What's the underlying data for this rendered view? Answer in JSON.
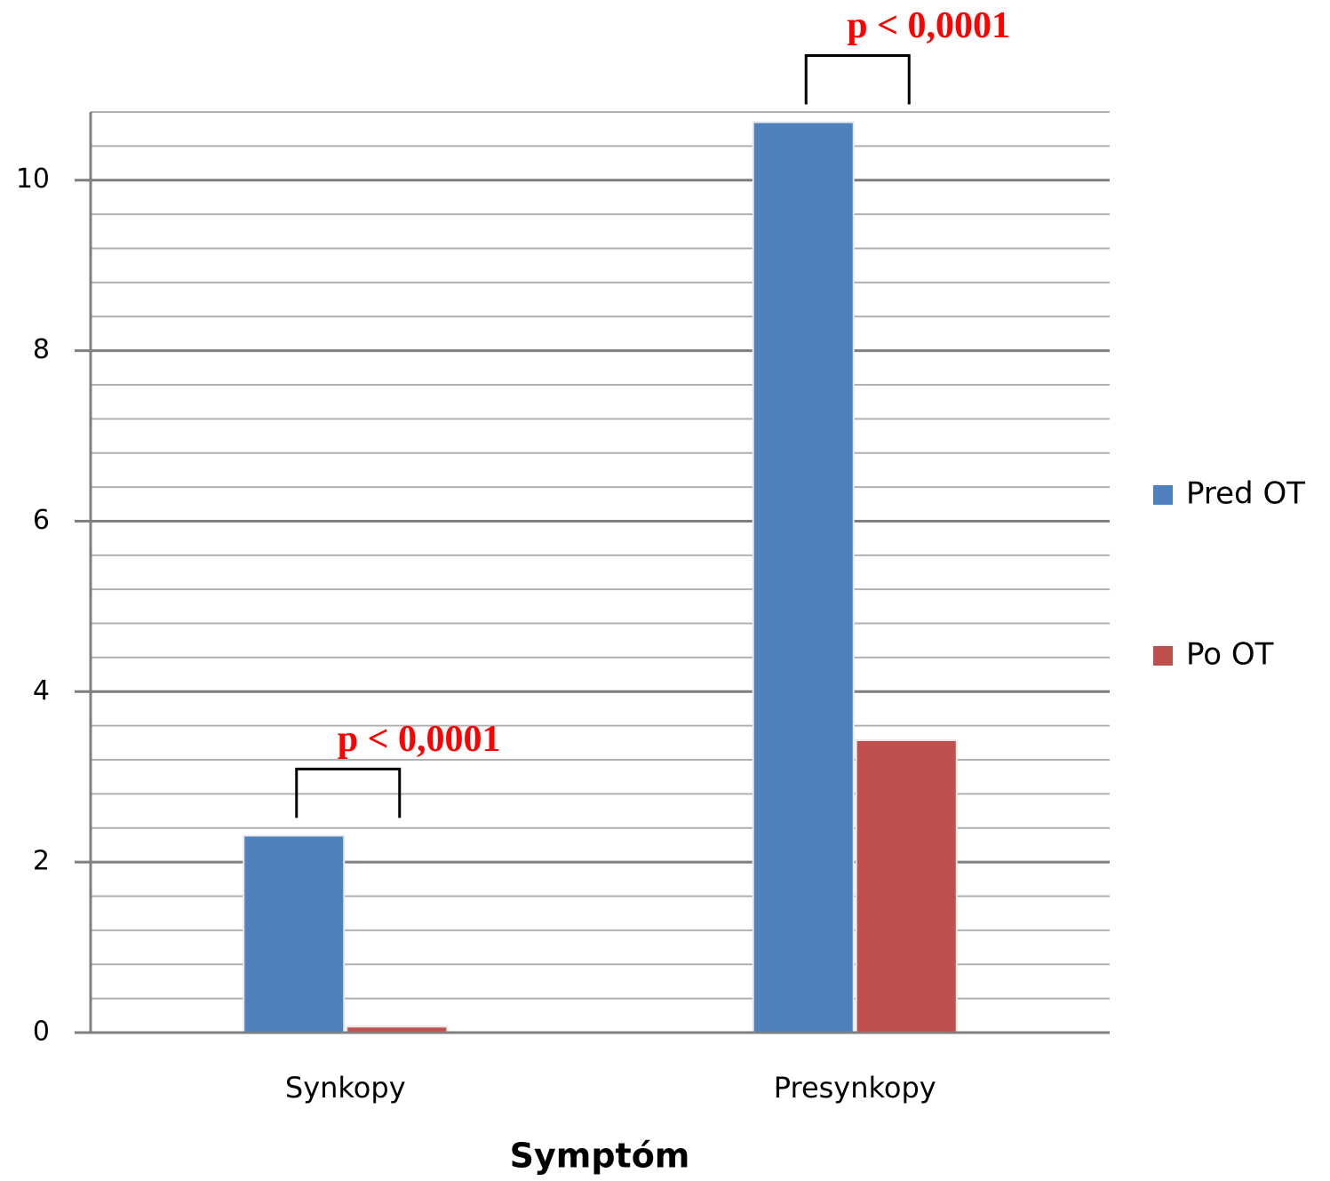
{
  "chart_data": {
    "type": "bar",
    "categories": [
      "Synkopy",
      "Presynkopy"
    ],
    "series": [
      {
        "name": "Pred OT",
        "color": "#4f81bd",
        "values": [
          2.31,
          10.68
        ]
      },
      {
        "name": "Po OT",
        "color": "#c0504d",
        "values": [
          0.07,
          3.43
        ]
      }
    ],
    "xlabel": "Symptóm",
    "ylim": [
      0,
      10.8
    ],
    "yticks": [
      0,
      2,
      4,
      6,
      8,
      10
    ],
    "minor_yticks": [
      0.4,
      0.8,
      1.2,
      1.6,
      2.4,
      2.8,
      3.2,
      3.6,
      4.4,
      4.8,
      5.2,
      5.6,
      6.4,
      6.8,
      7.2,
      7.6,
      8.4,
      8.8,
      9.2,
      9.6,
      10.4,
      10.8
    ],
    "grid": true,
    "legend": "right",
    "annotations": [
      {
        "category": "Synkopy",
        "text": "p < 0,0001"
      },
      {
        "category": "Presynkopy",
        "text": "p < 0,0001"
      }
    ]
  }
}
